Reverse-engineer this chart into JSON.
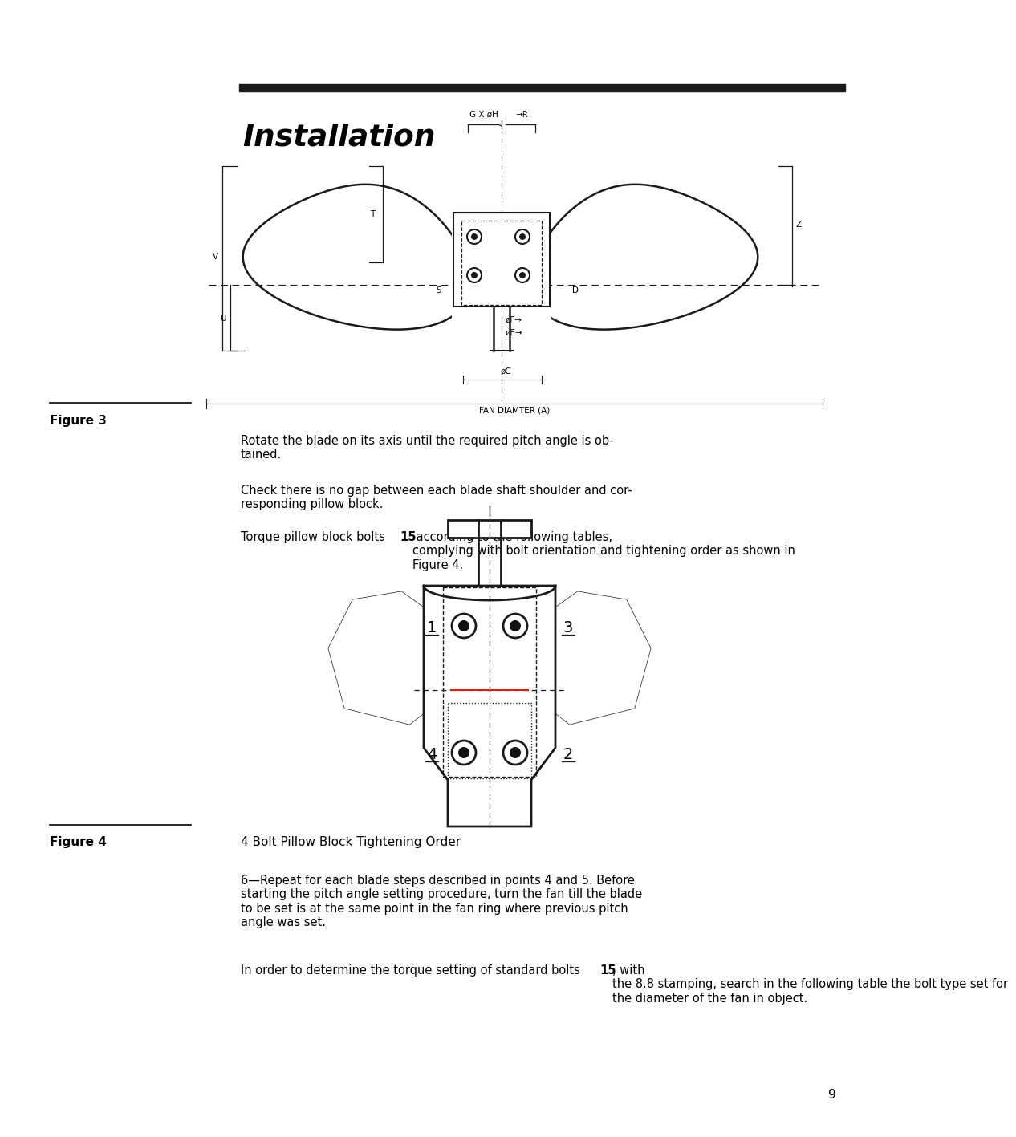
{
  "title": "Installation",
  "figure3_label": "Figure 3",
  "figure4_label": "Figure 4",
  "figure4_caption": "4 Bolt Pillow Block Tightening Order",
  "bg_color": "#ffffff",
  "text_color": "#000000",
  "line_color": "#1a1a1a",
  "header_bar_color": "#1a1a1a",
  "page_number": "9",
  "para1": "Rotate the blade on its axis until the required pitch angle is ob-\ntained.",
  "para2": "Check there is no gap between each blade shaft shoulder and cor-\nresponding pillow block.",
  "para3a": "Torque pillow block bolts ",
  "para3b": "15",
  "para3c": " according to the following tables,\ncomplying with bolt orientation and tightening order as shown in\nFigure 4.",
  "para6": "6—Repeat for each blade steps described in points 4 and 5. Before\nstarting the pitch angle setting procedure, turn the fan till the blade\nto be set is at the same point in the fan ring where previous pitch\nangle was set.",
  "para7a": "In order to determine the torque setting of standard bolts ",
  "para7b": "15",
  "para7c": ", with\nthe 8.8 stamping, search in the following table the bolt type set for\nthe diameter of the fan in object."
}
